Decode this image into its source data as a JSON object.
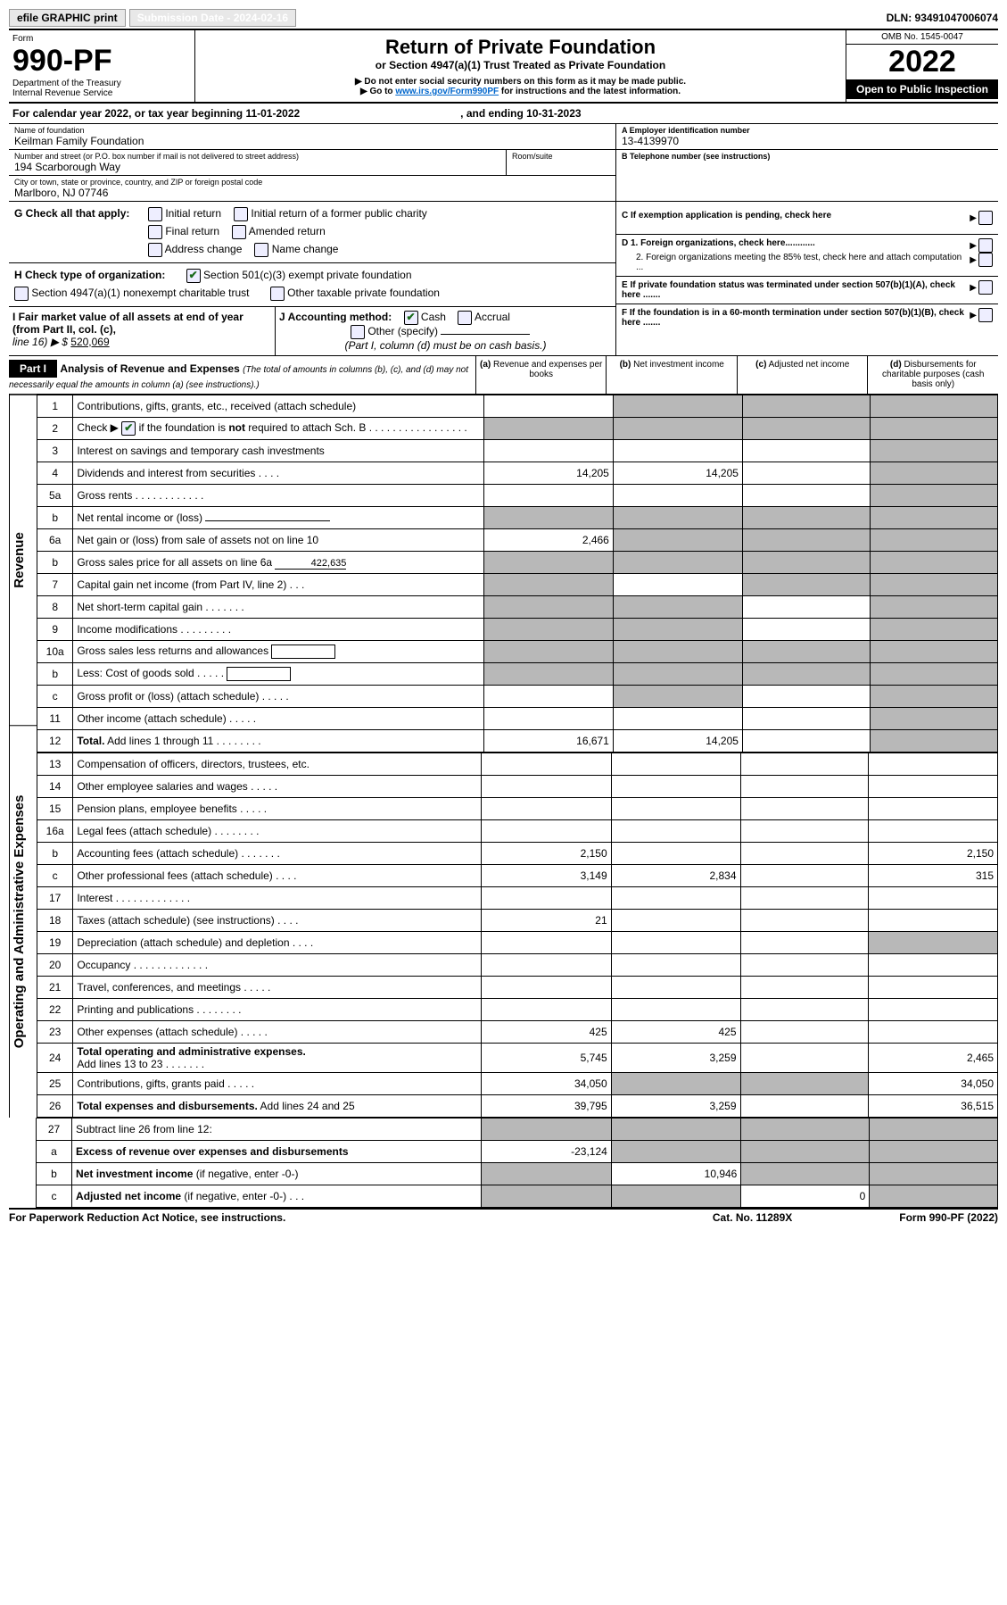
{
  "header_top": {
    "efile_label": "efile GRAPHIC print",
    "submission_label": "Submission Date - 2024-02-16",
    "dln_label": "DLN: 93491047006074"
  },
  "form_header": {
    "form_word": "Form",
    "form_num": "990-PF",
    "dept": "Department of the Treasury",
    "irs": "Internal Revenue Service",
    "title": "Return of Private Foundation",
    "subtitle": "or Section 4947(a)(1) Trust Treated as Private Foundation",
    "note1": "▶ Do not enter social security numbers on this form as it may be made public.",
    "note2_prefix": "▶ Go to ",
    "note2_link": "www.irs.gov/Form990PF",
    "note2_suffix": " for instructions and the latest information.",
    "omb": "OMB No. 1545-0047",
    "year": "2022",
    "open_inspect": "Open to Public Inspection"
  },
  "cal_year": {
    "label": "For calendar year 2022, or tax year beginning 11-01-2022",
    "ending": ", and ending 10-31-2023"
  },
  "entity": {
    "name_label": "Name of foundation",
    "name": "Keilman Family Foundation",
    "street_label": "Number and street (or P.O. box number if mail is not delivered to street address)",
    "street": "194 Scarborough Way",
    "room_label": "Room/suite",
    "city_label": "City or town, state or province, country, and ZIP or foreign postal code",
    "city": "Marlboro, NJ  07746",
    "ein_label": "A Employer identification number",
    "ein": "13-4139970",
    "phone_label": "B Telephone number (see instructions)",
    "c_label": "C If exemption application is pending, check here",
    "d1_label": "D 1. Foreign organizations, check here............",
    "d2_label": "2. Foreign organizations meeting the 85% test, check here and attach computation ...",
    "e_label": "E  If private foundation status was terminated under section 507(b)(1)(A), check here .......",
    "f_label": "F  If the foundation is in a 60-month termination under section 507(b)(1)(B), check here ......."
  },
  "g": {
    "label": "G Check all that apply:",
    "opts": [
      "Initial return",
      "Initial return of a former public charity",
      "Final return",
      "Amended return",
      "Address change",
      "Name change"
    ]
  },
  "h": {
    "label": "H Check type of organization:",
    "opt1": "Section 501(c)(3) exempt private foundation",
    "opt2": "Section 4947(a)(1) nonexempt charitable trust",
    "opt3": "Other taxable private foundation"
  },
  "i": {
    "label": "I Fair market value of all assets at end of year (from Part II, col. (c),",
    "line16": "line 16) ▶ $",
    "value": "520,069"
  },
  "j": {
    "label": "J Accounting method:",
    "cash": "Cash",
    "accrual": "Accrual",
    "other": "Other (specify)",
    "note": "(Part I, column (d) must be on cash basis.)"
  },
  "part1": {
    "label": "Part I",
    "title": "Analysis of Revenue and Expenses",
    "title_note": " (The total of amounts in columns (b), (c), and (d) may not necessarily equal the amounts in column (a) (see instructions).)",
    "col_a": "(a)",
    "col_a_sub": "Revenue and expenses per books",
    "col_b": "(b)",
    "col_b_sub": "Net investment income",
    "col_c": "(c)",
    "col_c_sub": "Adjusted net income",
    "col_d": "(d)",
    "col_d_sub": "Disbursements for charitable purposes (cash basis only)"
  },
  "sections": {
    "revenue": "Revenue",
    "oae": "Operating and Administrative Expenses"
  },
  "lines": [
    {
      "n": "1",
      "d": "",
      "a": "",
      "b": "",
      "c": "",
      "dgray": true,
      "bgray": true,
      "cgray": true
    },
    {
      "n": "2",
      "d": "",
      "a": "",
      "b": "",
      "c": "",
      "allgray": true
    },
    {
      "n": "3",
      "d": "",
      "a": "",
      "b": "",
      "c": "",
      "dgray": true
    },
    {
      "n": "4",
      "d": "",
      "a": "14,205",
      "b": "14,205",
      "c": "",
      "dgray": true
    },
    {
      "n": "5a",
      "d": "",
      "a": "",
      "b": "",
      "c": "",
      "dgray": true
    },
    {
      "n": "b",
      "d": "",
      "a": "",
      "b": "",
      "c": "",
      "allgray": true,
      "inline": true
    },
    {
      "n": "6a",
      "d": "",
      "a": "2,466",
      "b": "",
      "c": "",
      "bgray": true,
      "cgray": true,
      "dgray": true
    },
    {
      "n": "b",
      "d": "",
      "a": "",
      "b": "",
      "c": "",
      "allgray": true,
      "inline": true,
      "inlineval": "422,635"
    },
    {
      "n": "7",
      "d": "",
      "a": "",
      "b": "",
      "c": "",
      "agray": true,
      "cgray": true,
      "dgray": true
    },
    {
      "n": "8",
      "d": "",
      "a": "",
      "b": "",
      "c": "",
      "agray": true,
      "bgray": true,
      "dgray": true
    },
    {
      "n": "9",
      "d": "",
      "a": "",
      "b": "",
      "c": "",
      "agray": true,
      "bgray": true,
      "dgray": true
    },
    {
      "n": "10a",
      "d": "",
      "a": "",
      "b": "",
      "c": "",
      "allgray": true,
      "inline": true
    },
    {
      "n": "b",
      "d": "",
      "a": "",
      "b": "",
      "c": "",
      "allgray": true,
      "inline": true
    },
    {
      "n": "c",
      "d": "",
      "a": "",
      "b": "",
      "c": "",
      "bgray": true,
      "dgray": true
    },
    {
      "n": "11",
      "d": "",
      "a": "",
      "b": "",
      "c": "",
      "dgray": true
    },
    {
      "n": "12",
      "d": "",
      "a": "16,671",
      "b": "14,205",
      "c": "",
      "dgray": true,
      "bold": true
    }
  ],
  "exp_lines": [
    {
      "n": "13",
      "d": "",
      "a": "",
      "b": "",
      "c": ""
    },
    {
      "n": "14",
      "d": "",
      "a": "",
      "b": "",
      "c": ""
    },
    {
      "n": "15",
      "d": "",
      "a": "",
      "b": "",
      "c": ""
    },
    {
      "n": "16a",
      "d": "",
      "a": "",
      "b": "",
      "c": ""
    },
    {
      "n": "b",
      "d": "2,150",
      "a": "2,150",
      "b": "",
      "c": ""
    },
    {
      "n": "c",
      "d": "315",
      "a": "3,149",
      "b": "2,834",
      "c": ""
    },
    {
      "n": "17",
      "d": "",
      "a": "",
      "b": "",
      "c": ""
    },
    {
      "n": "18",
      "d": "",
      "a": "21",
      "b": "",
      "c": ""
    },
    {
      "n": "19",
      "d": "",
      "a": "",
      "b": "",
      "c": "",
      "dgray": true
    },
    {
      "n": "20",
      "d": "",
      "a": "",
      "b": "",
      "c": ""
    },
    {
      "n": "21",
      "d": "",
      "a": "",
      "b": "",
      "c": ""
    },
    {
      "n": "22",
      "d": "",
      "a": "",
      "b": "",
      "c": ""
    },
    {
      "n": "23",
      "d": "",
      "a": "425",
      "b": "425",
      "c": ""
    },
    {
      "n": "24",
      "d": "2,465",
      "a": "5,745",
      "b": "3,259",
      "c": "",
      "bold": true
    },
    {
      "n": "25",
      "d": "34,050",
      "a": "34,050",
      "b": "",
      "c": "",
      "bgray": true,
      "cgray": true
    },
    {
      "n": "26",
      "d": "36,515",
      "a": "39,795",
      "b": "3,259",
      "c": "",
      "bold": true
    }
  ],
  "bottom_lines": [
    {
      "n": "27",
      "d": "",
      "a": "",
      "b": "",
      "c": "",
      "allgray": true
    },
    {
      "n": "a",
      "d": "",
      "a": "-23,124",
      "b": "",
      "c": "",
      "bgray": true,
      "cgray": true,
      "dgray": true,
      "bold": true
    },
    {
      "n": "b",
      "d": "",
      "a": "",
      "b": "10,946",
      "c": "",
      "agray": true,
      "cgray": true,
      "dgray": true,
      "bold": true
    },
    {
      "n": "c",
      "d": "",
      "a": "",
      "b": "",
      "c": "0",
      "agray": true,
      "bgray": true,
      "dgray": true,
      "bold": true
    }
  ],
  "footer": {
    "left": "For Paperwork Reduction Act Notice, see instructions.",
    "mid": "Cat. No. 11289X",
    "right": "Form 990-PF (2022)"
  }
}
